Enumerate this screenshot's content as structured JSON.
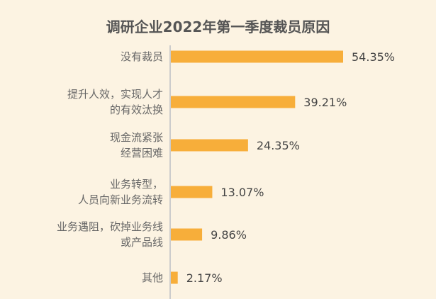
{
  "chart_data": {
    "type": "bar",
    "orientation": "horizontal",
    "title": "调研企业2022年第一季度裁员原因",
    "categories": [
      [
        "没有裁员"
      ],
      [
        "提升人效，实现人才",
        "的有效汰换"
      ],
      [
        "现金流紧张",
        "经营困难"
      ],
      [
        "业务转型，",
        "人员向新业务流转"
      ],
      [
        "业务遇阻，砍掉业务线",
        "或产品线"
      ],
      [
        "其他"
      ]
    ],
    "values": [
      54.35,
      39.21,
      24.35,
      13.07,
      9.86,
      2.17
    ],
    "value_labels": [
      "54.35%",
      "39.21%",
      "24.35%",
      "13.07%",
      "9.86%",
      "2.17%"
    ],
    "xlim": [
      0,
      60
    ],
    "grid": false,
    "colors": {
      "bar": "#f7ae3a",
      "background": "#fcf3e2",
      "text": "#666666",
      "axis": "#cccccc"
    }
  }
}
